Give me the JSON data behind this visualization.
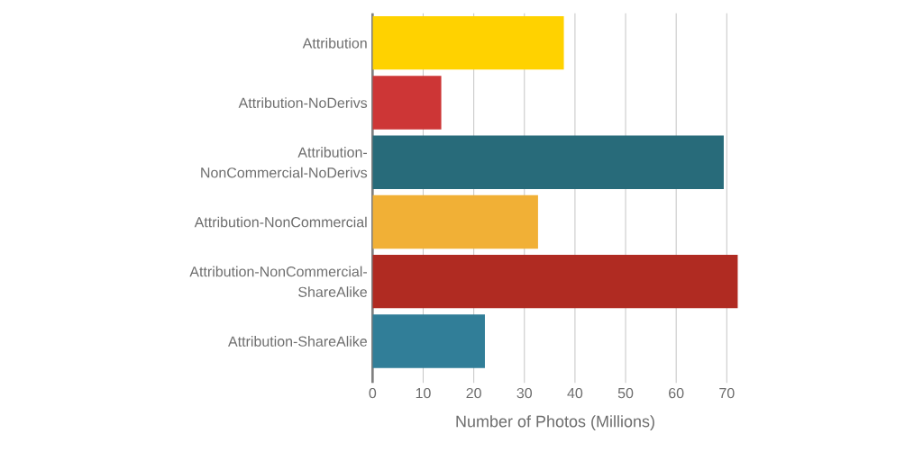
{
  "chart_data": {
    "type": "bar",
    "orientation": "horizontal",
    "xlabel": "Number of Photos (Millions)",
    "categories": [
      "Attribution",
      "Attribution-NoDerivs",
      "Attribution-NonCommercial-NoDerivs",
      "Attribution-NonCommercial",
      "Attribution-NonCommercial-ShareAlike",
      "Attribution-ShareAlike"
    ],
    "values": [
      37.8,
      13.6,
      69.4,
      32.7,
      72.2,
      22.2
    ],
    "colors": [
      "#ffd200",
      "#cd3636",
      "#286b7a",
      "#f1b036",
      "#b02b22",
      "#317e98"
    ],
    "xlim": [
      0,
      72.2
    ],
    "xticks": [
      0,
      10,
      20,
      30,
      40,
      50,
      60,
      70
    ],
    "grid": "x"
  }
}
